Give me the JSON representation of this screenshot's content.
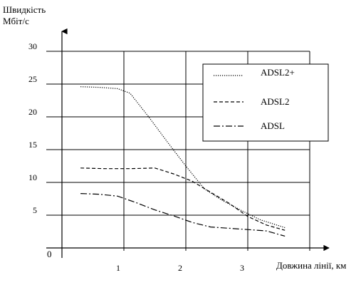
{
  "chart_data": {
    "type": "line",
    "title": "",
    "ylabel_line1": "Швидкість",
    "ylabel_line2": "Мбіт/с",
    "xlabel": "Довжина лінії, км",
    "origin_label": "0",
    "x_ticks": [
      1,
      2,
      3
    ],
    "y_ticks": [
      5,
      10,
      15,
      20,
      25,
      30
    ],
    "xlim": [
      0,
      4
    ],
    "ylim": [
      0,
      30
    ],
    "grid": true,
    "legend_position": "top-right",
    "series": [
      {
        "name": "ADSL2+",
        "style": "dotted",
        "points": [
          [
            0.3,
            24.6
          ],
          [
            0.6,
            24.5
          ],
          [
            0.9,
            24.3
          ],
          [
            1.1,
            23.6
          ],
          [
            1.4,
            20.0
          ],
          [
            1.7,
            16.2
          ],
          [
            2.0,
            12.5
          ],
          [
            2.3,
            9.0
          ],
          [
            2.6,
            7.2
          ],
          [
            2.9,
            5.7
          ],
          [
            3.2,
            4.3
          ],
          [
            3.6,
            3.1
          ]
        ]
      },
      {
        "name": "ADSL2",
        "style": "dashed",
        "points": [
          [
            0.3,
            12.2
          ],
          [
            0.7,
            12.1
          ],
          [
            1.1,
            12.1
          ],
          [
            1.5,
            12.2
          ],
          [
            1.8,
            11.3
          ],
          [
            2.1,
            10.2
          ],
          [
            2.4,
            8.5
          ],
          [
            2.7,
            6.8
          ],
          [
            3.0,
            4.8
          ],
          [
            3.3,
            3.5
          ],
          [
            3.6,
            2.7
          ]
        ]
      },
      {
        "name": "ADSL",
        "style": "dashdot",
        "points": [
          [
            0.3,
            8.3
          ],
          [
            0.6,
            8.2
          ],
          [
            0.9,
            7.9
          ],
          [
            1.2,
            6.9
          ],
          [
            1.5,
            5.8
          ],
          [
            1.8,
            4.9
          ],
          [
            2.1,
            3.9
          ],
          [
            2.4,
            3.2
          ],
          [
            2.7,
            3.0
          ],
          [
            3.0,
            2.8
          ],
          [
            3.3,
            2.6
          ],
          [
            3.6,
            1.8
          ]
        ]
      }
    ]
  }
}
